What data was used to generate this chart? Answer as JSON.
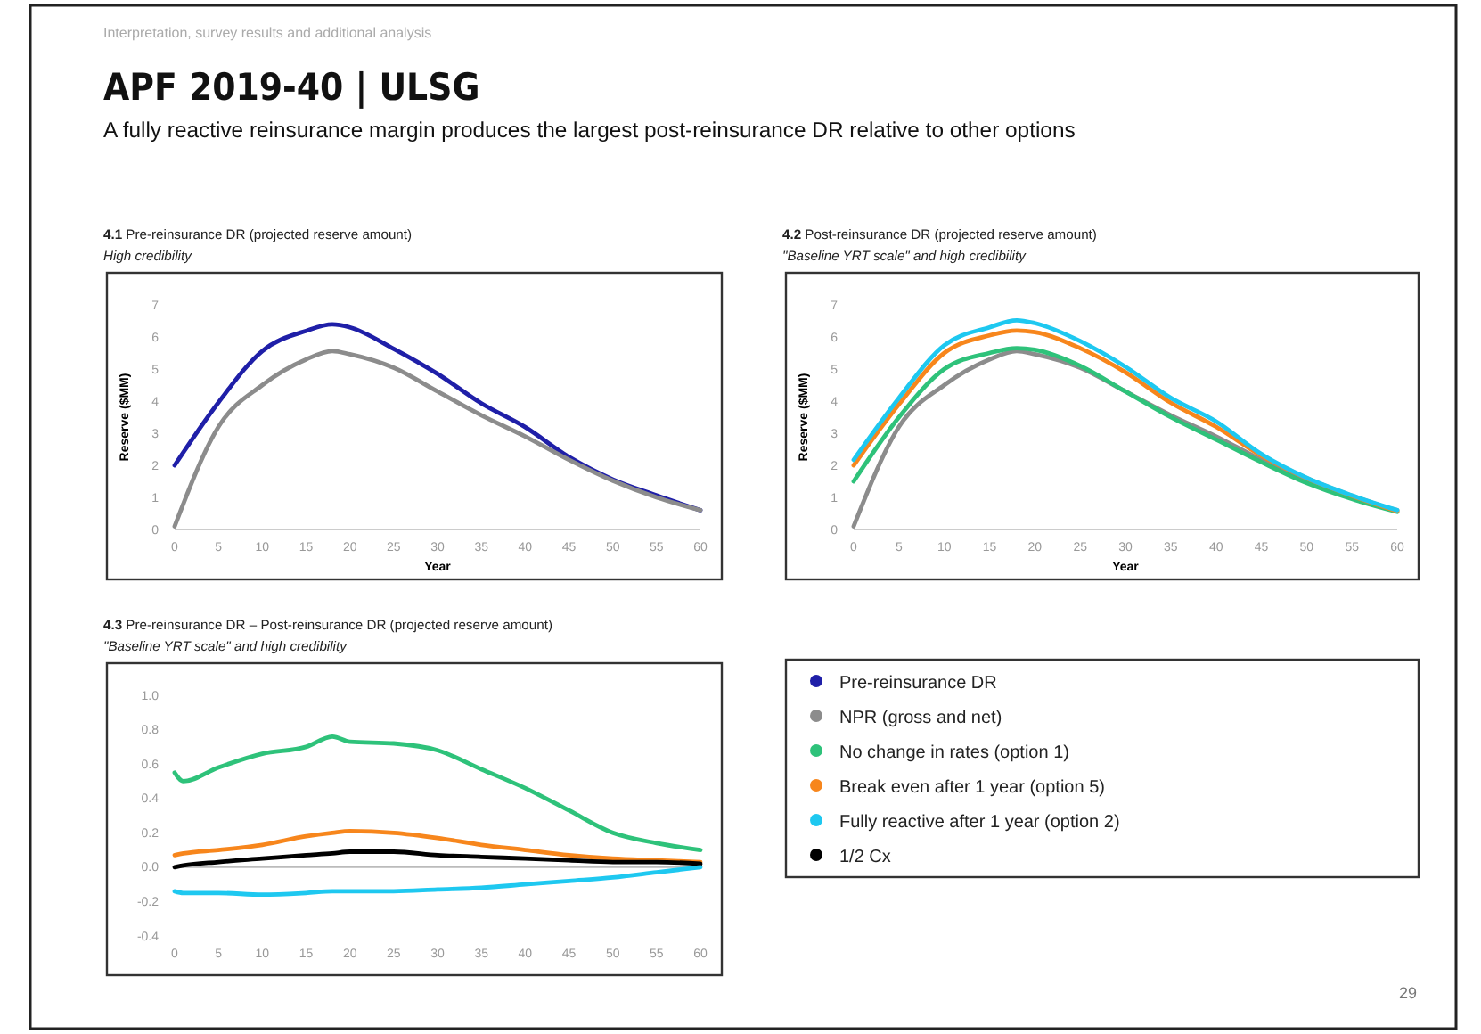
{
  "chart_data": [
    {
      "type": "line",
      "title": "4.1 Pre-reinsurance DR (projected reserve amount)",
      "subtitle": "High credibility",
      "xlabel": "Year",
      "ylabel": "Reserve ($MM)",
      "annotations": [
        "Interpretation, survey results and additional analysis",
        "APF 2019-40 | ULSG",
        "A fully reactive reinsurance margin produces the largest post-reinsurance DR relative to other options",
        "29"
      ],
      "x": [
        0,
        5,
        10,
        15,
        18,
        20,
        25,
        30,
        35,
        40,
        45,
        50,
        55,
        60
      ],
      "xlim": [
        0,
        60
      ],
      "xticks": [
        0,
        5,
        10,
        15,
        20,
        25,
        30,
        35,
        40,
        45,
        50,
        55,
        60
      ],
      "ylim": [
        0,
        7
      ],
      "yticks": [
        0,
        1,
        2,
        3,
        4,
        5,
        6,
        7
      ],
      "legend": "bottom right",
      "series": [
        {
          "name": "Pre-reinsurance DR",
          "color": "#1f1fa8",
          "values": [
            2.0,
            3.96,
            5.56,
            6.19,
            6.39,
            6.3,
            5.63,
            4.85,
            3.93,
            3.19,
            2.26,
            1.56,
            1.06,
            0.6
          ]
        },
        {
          "name": "NPR (gross and net)",
          "color": "#8c8c8c",
          "values": [
            0.1,
            3.2,
            4.5,
            5.3,
            5.56,
            5.46,
            5.04,
            4.3,
            3.56,
            2.9,
            2.17,
            1.52,
            1.0,
            0.6
          ]
        }
      ]
    },
    {
      "type": "line",
      "title": "4.2 Post-reinsurance DR (projected reserve amount)",
      "subtitle": "\"Baseline YRT scale\" and high credibility",
      "xlabel": "Year",
      "ylabel": "Reserve ($MM)",
      "x": [
        0,
        5,
        10,
        15,
        18,
        20,
        25,
        30,
        35,
        40,
        45,
        50,
        55,
        60
      ],
      "xlim": [
        0,
        60
      ],
      "xticks": [
        0,
        5,
        10,
        15,
        20,
        25,
        30,
        35,
        40,
        45,
        50,
        55,
        60
      ],
      "ylim": [
        0,
        7
      ],
      "yticks": [
        0,
        1,
        2,
        3,
        4,
        5,
        6,
        7
      ],
      "legend": "bottom",
      "series": [
        {
          "name": "NPR (gross and net)",
          "color": "#8c8c8c",
          "values": [
            0.1,
            3.2,
            4.5,
            5.3,
            5.56,
            5.46,
            5.04,
            4.3,
            3.56,
            2.9,
            2.17,
            1.52,
            1.0,
            0.6
          ]
        },
        {
          "name": "No change in rates (option 1)",
          "color": "#2ec27a",
          "values": [
            1.5,
            3.5,
            5.0,
            5.5,
            5.65,
            5.6,
            5.1,
            4.3,
            3.5,
            2.8,
            2.1,
            1.45,
            0.95,
            0.55
          ]
        },
        {
          "name": "Break even after 1 year (option 5)",
          "color": "#f7861c",
          "values": [
            2.0,
            3.9,
            5.5,
            6.05,
            6.2,
            6.15,
            5.65,
            4.9,
            3.95,
            3.2,
            2.3,
            1.6,
            1.05,
            0.57
          ]
        },
        {
          "name": "Fully reactive after 1 year (option 2)",
          "color": "#1ec8f0",
          "values": [
            2.17,
            4.1,
            5.74,
            6.3,
            6.52,
            6.43,
            5.87,
            5.07,
            4.1,
            3.37,
            2.35,
            1.61,
            1.06,
            0.6
          ]
        }
      ]
    },
    {
      "type": "line",
      "title": "4.3 Pre-reinsurance DR – Post-reinsurance DR (projected reserve amount)",
      "subtitle": "\"Baseline YRT scale\" and high credibility",
      "x": [
        0,
        1,
        5,
        10,
        15,
        18,
        20,
        25,
        30,
        35,
        40,
        45,
        50,
        55,
        60
      ],
      "xlim": [
        0,
        60
      ],
      "xticks": [
        0,
        5,
        10,
        15,
        20,
        25,
        30,
        35,
        40,
        45,
        50,
        55,
        60
      ],
      "ylim": [
        -0.4,
        1.0
      ],
      "yticks": [
        {
          "value": -0.4,
          "label": "-0.4"
        },
        {
          "value": -0.2,
          "label": "-0.2"
        },
        {
          "value": 0,
          "label": "0.0"
        },
        {
          "value": 0.2,
          "label": "0.2"
        },
        {
          "value": 0.4,
          "label": "0.4"
        },
        {
          "value": 0.6,
          "label": "0.6"
        },
        {
          "value": 0.8,
          "label": "0.8"
        },
        {
          "value": 1,
          "label": "1.0"
        }
      ],
      "legend": "right",
      "series": [
        {
          "name": "No change in rates (option 1)",
          "color": "#2ec27a",
          "values": [
            0.55,
            0.5,
            0.58,
            0.66,
            0.7,
            0.76,
            0.73,
            0.72,
            0.68,
            0.57,
            0.46,
            0.33,
            0.2,
            0.14,
            0.1
          ]
        },
        {
          "name": "Break even after 1 year (option 5)",
          "color": "#f7861c",
          "values": [
            0.07,
            0.08,
            0.1,
            0.13,
            0.18,
            0.2,
            0.21,
            0.2,
            0.17,
            0.13,
            0.1,
            0.07,
            0.05,
            0.04,
            0.03
          ]
        },
        {
          "name": "1/2 Cx",
          "color": "#000000",
          "values": [
            0.0,
            0.01,
            0.03,
            0.05,
            0.07,
            0.08,
            0.09,
            0.09,
            0.07,
            0.06,
            0.05,
            0.04,
            0.03,
            0.03,
            0.02
          ]
        },
        {
          "name": "Fully reactive after 1 year (option 2)",
          "color": "#1ec8f0",
          "values": [
            -0.14,
            -0.15,
            -0.15,
            -0.16,
            -0.15,
            -0.14,
            -0.14,
            -0.14,
            -0.13,
            -0.12,
            -0.1,
            -0.08,
            -0.06,
            -0.03,
            0.0
          ]
        }
      ]
    }
  ]
}
